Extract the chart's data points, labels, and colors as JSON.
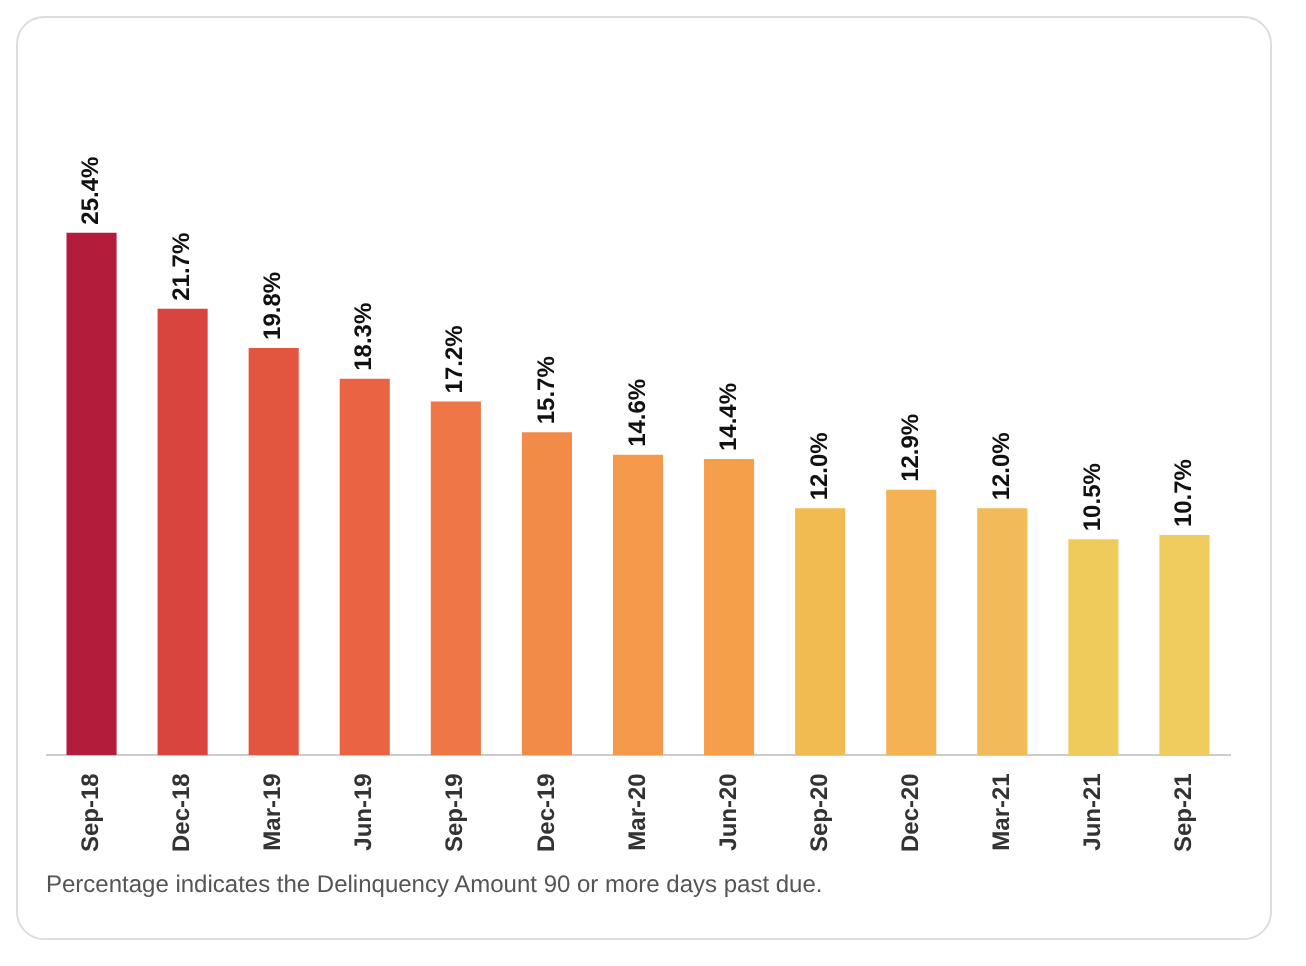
{
  "chart_data": {
    "type": "bar",
    "categories": [
      "Sep-18",
      "Dec-18",
      "Mar-19",
      "Jun-19",
      "Sep-19",
      "Dec-19",
      "Mar-20",
      "Jun-20",
      "Sep-20",
      "Dec-20",
      "Mar-21",
      "Jun-21",
      "Sep-21"
    ],
    "values": [
      25.4,
      21.7,
      19.8,
      18.3,
      17.2,
      15.7,
      14.6,
      14.4,
      12.0,
      12.9,
      12.0,
      10.5,
      10.7
    ],
    "value_labels": [
      "25.4%",
      "21.7%",
      "19.8%",
      "18.3%",
      "17.2%",
      "15.7%",
      "14.6%",
      "14.4%",
      "12.0%",
      "12.9%",
      "12.0%",
      "10.5%",
      "10.7%"
    ],
    "colors": [
      "#b41c3c",
      "#d9443f",
      "#e2553f",
      "#ea6443",
      "#ef7747",
      "#f28a48",
      "#f59a4a",
      "#f69f4b",
      "#f2bb52",
      "#f4b254",
      "#f2ba58",
      "#efcb5c",
      "#f0cc5e"
    ],
    "tick_labels": "x",
    "grid": false,
    "legend": false,
    "annotations": [
      "Percentage indicates the Delinquency Amount 90 or more days past due."
    ]
  }
}
